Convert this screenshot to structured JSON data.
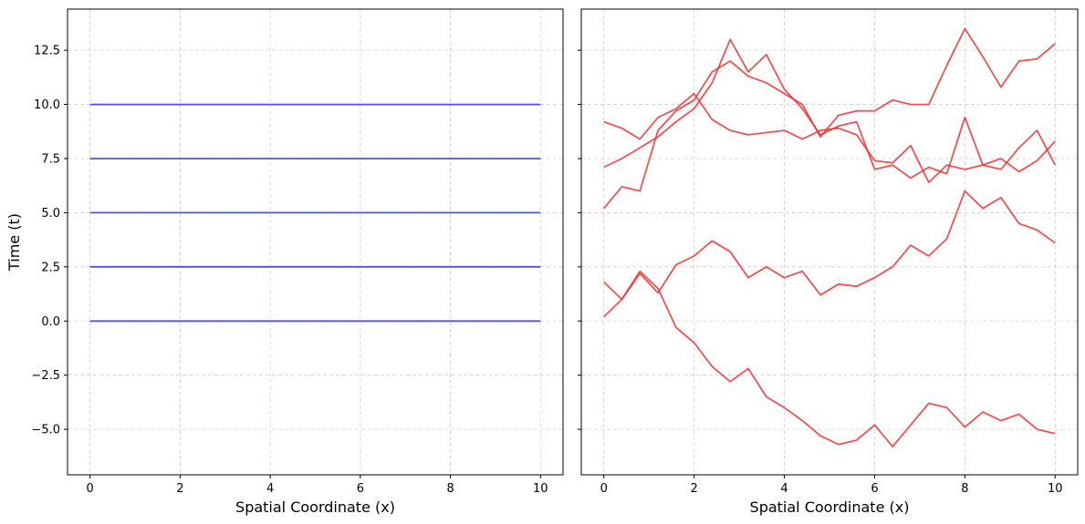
{
  "chart_data": [
    {
      "type": "line",
      "xlabel": "Spatial Coordinate (x)",
      "ylabel": "Time (t)",
      "xlim": [
        -0.5,
        10.5
      ],
      "ylim": [
        -7.1,
        14.4
      ],
      "xticks": [
        0,
        2,
        4,
        6,
        8,
        10
      ],
      "yticks": [
        -5.0,
        -2.5,
        0.0,
        2.5,
        5.0,
        7.5,
        10.0,
        12.5
      ],
      "ytick_labels": [
        "−5.0",
        "−2.5",
        "0.0",
        "2.5",
        "5.0",
        "7.5",
        "10.0",
        "12.5"
      ],
      "grid": true,
      "color": "#3333ee",
      "series": [
        {
          "x": [
            0,
            10
          ],
          "y": [
            0.0,
            0.0
          ]
        },
        {
          "x": [
            0,
            10
          ],
          "y": [
            2.5,
            2.5
          ]
        },
        {
          "x": [
            0,
            10
          ],
          "y": [
            5.0,
            5.0
          ]
        },
        {
          "x": [
            0,
            10
          ],
          "y": [
            7.5,
            7.5
          ]
        },
        {
          "x": [
            0,
            10
          ],
          "y": [
            10.0,
            10.0
          ]
        }
      ]
    },
    {
      "type": "line",
      "xlabel": "Spatial Coordinate (x)",
      "xlim": [
        -0.5,
        10.5
      ],
      "ylim": [
        -7.1,
        14.4
      ],
      "xticks": [
        0,
        2,
        4,
        6,
        8,
        10
      ],
      "grid": true,
      "color": "#ee3333",
      "series": [
        {
          "x": [
            0,
            0.4,
            0.8,
            1.2,
            1.6,
            2.0,
            2.4,
            2.8,
            3.2,
            3.6,
            4.0,
            4.4,
            4.8,
            5.2,
            5.6,
            6.0,
            6.4,
            6.8,
            7.2,
            7.6,
            8.0,
            8.4,
            8.8,
            9.2,
            9.6,
            10.0
          ],
          "y": [
            0.2,
            1.0,
            2.2,
            1.3,
            2.6,
            3.0,
            3.7,
            3.2,
            2.0,
            2.5,
            2.0,
            2.3,
            1.2,
            1.7,
            1.6,
            2.0,
            2.5,
            3.5,
            3.0,
            3.8,
            6.0,
            5.2,
            5.7,
            4.5,
            4.2,
            3.6
          ]
        },
        {
          "x": [
            0,
            0.4,
            0.8,
            1.2,
            1.6,
            2.0,
            2.4,
            2.8,
            3.2,
            3.6,
            4.0,
            4.4,
            4.8,
            5.2,
            5.6,
            6.0,
            6.4,
            6.8,
            7.2,
            7.6,
            8.0,
            8.4,
            8.8,
            9.2,
            9.6,
            10.0
          ],
          "y": [
            1.8,
            1.0,
            2.3,
            1.5,
            -0.3,
            -1.0,
            -2.1,
            -2.8,
            -2.2,
            -3.5,
            -4.0,
            -4.6,
            -5.3,
            -5.7,
            -5.5,
            -4.8,
            -5.8,
            -4.8,
            -3.8,
            -4.0,
            -4.9,
            -4.2,
            -4.6,
            -4.3,
            -5.0,
            -5.2
          ]
        },
        {
          "x": [
            0,
            0.4,
            0.8,
            1.2,
            1.6,
            2.0,
            2.4,
            2.8,
            3.2,
            3.6,
            4.0,
            4.4,
            4.8,
            5.2,
            5.6,
            6.0,
            6.4,
            6.8,
            7.2,
            7.6,
            8.0,
            8.4,
            8.8,
            9.2,
            9.6,
            10.0
          ],
          "y": [
            5.2,
            6.2,
            6.0,
            8.8,
            9.7,
            10.2,
            11.5,
            12.0,
            11.3,
            11.0,
            10.5,
            10.0,
            8.5,
            9.5,
            9.7,
            9.7,
            10.2,
            10.0,
            10.0,
            11.8,
            13.5,
            12.2,
            10.8,
            12.0,
            12.1,
            12.8
          ]
        },
        {
          "x": [
            0,
            0.4,
            0.8,
            1.2,
            1.6,
            2.0,
            2.4,
            2.8,
            3.2,
            3.6,
            4.0,
            4.4,
            4.8,
            5.2,
            5.6,
            6.0,
            6.4,
            6.8,
            7.2,
            7.6,
            8.0,
            8.4,
            8.8,
            9.2,
            9.6,
            10.0
          ],
          "y": [
            7.1,
            7.5,
            8.0,
            8.5,
            9.2,
            9.8,
            11.0,
            13.0,
            11.5,
            12.3,
            10.7,
            9.8,
            8.6,
            9.0,
            9.2,
            7.0,
            7.2,
            6.6,
            7.1,
            6.8,
            9.4,
            7.2,
            7.0,
            8.0,
            8.8,
            7.2
          ]
        },
        {
          "x": [
            0,
            0.4,
            0.8,
            1.2,
            1.6,
            2.0,
            2.4,
            2.8,
            3.2,
            3.6,
            4.0,
            4.4,
            4.8,
            5.2,
            5.6,
            6.0,
            6.4,
            6.8,
            7.2,
            7.6,
            8.0,
            8.4,
            8.8,
            9.2,
            9.6,
            10.0
          ],
          "y": [
            9.2,
            8.9,
            8.4,
            9.4,
            9.8,
            10.5,
            9.3,
            8.8,
            8.6,
            8.7,
            8.8,
            8.4,
            8.8,
            8.9,
            8.6,
            7.4,
            7.3,
            8.1,
            6.4,
            7.2,
            7.0,
            7.2,
            7.5,
            6.9,
            7.4,
            8.3
          ]
        }
      ]
    }
  ]
}
